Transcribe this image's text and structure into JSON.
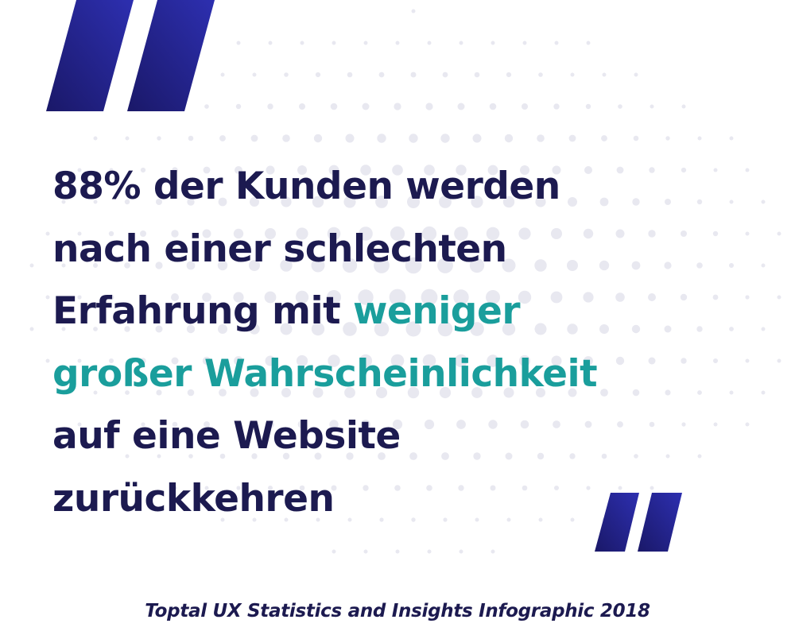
{
  "quote": {
    "line1": "88% der Kunden werden",
    "line2": "nach einer schlechten",
    "line3_prefix": "Erfahrung mit ",
    "line3_highlight": "weniger",
    "line4_highlight": "großer Wahrscheinlichkeit",
    "line5": "auf eine Website",
    "line6": "zurückkehren"
  },
  "source": {
    "caption": "Toptal UX Statistics and Insights Infographic 2018"
  },
  "colors": {
    "text_primary": "#1c1a50",
    "text_highlight": "#1a9e9c",
    "quote_mark_dark": "#1a1868",
    "quote_mark_light": "#2d2fb0",
    "dot": "#e8e8f0"
  },
  "icons": {
    "open_quote": "quote-open-icon",
    "close_quote": "quote-close-icon",
    "background": "dot-pattern"
  }
}
